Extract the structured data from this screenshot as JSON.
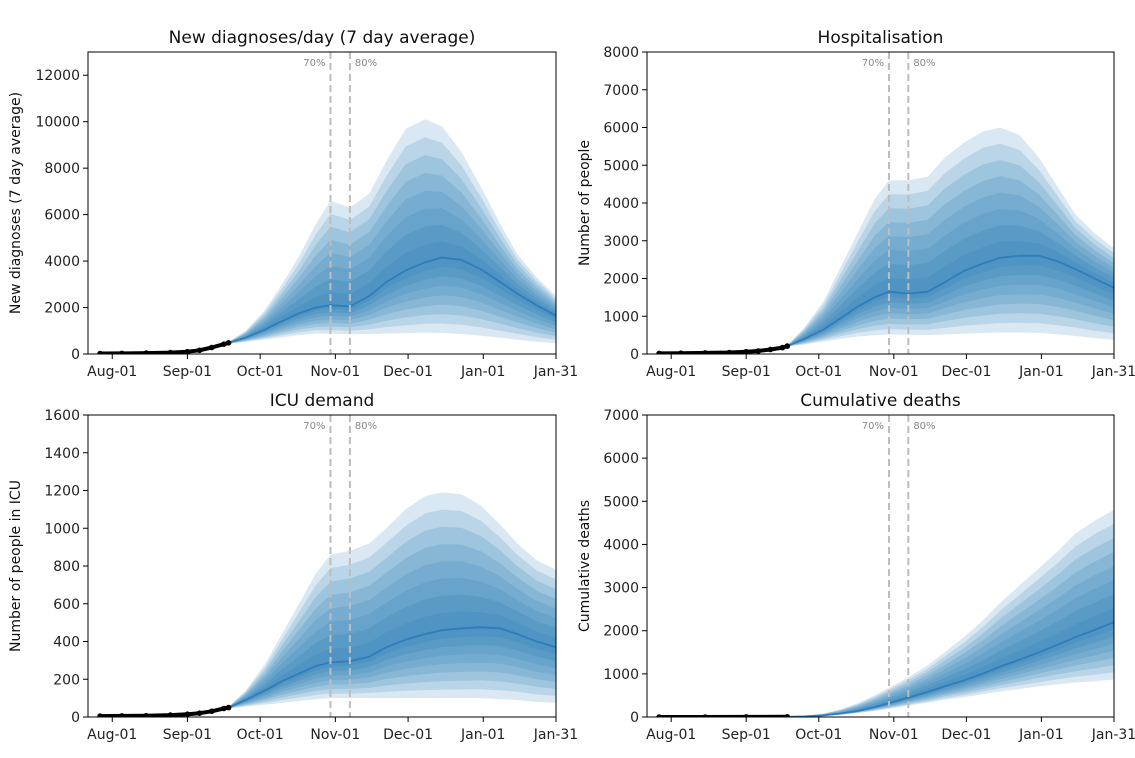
{
  "figure": {
    "colors": {
      "band": "#1f77b4",
      "median": "#2f7dbd",
      "observed": "#000000",
      "vline": "#bdbdbd",
      "axis": "#000000"
    }
  },
  "chart_data": [
    {
      "type": "area",
      "title": "New diagnoses/day (7 day average)",
      "xlabel": "",
      "ylabel": "New diagnoses (7 day average)",
      "x_ticks": [
        "Aug-01",
        "Sep-01",
        "Oct-01",
        "Nov-01",
        "Dec-01",
        "Jan-01",
        "Jan-31"
      ],
      "ylim": [
        0,
        13000
      ],
      "y_ticks": [
        0,
        2000,
        4000,
        6000,
        8000,
        10000,
        12000
      ],
      "vlines": [
        {
          "date": "2020-10-30",
          "label": "70%"
        },
        {
          "date": "2020-11-07",
          "label": "80%"
        }
      ],
      "observed": {
        "x": [
          "2020-07-27",
          "2020-08-05",
          "2020-08-15",
          "2020-08-25",
          "2020-09-01",
          "2020-09-06",
          "2020-09-11",
          "2020-09-16",
          "2020-09-18"
        ],
        "y": [
          20,
          25,
          40,
          60,
          100,
          160,
          280,
          420,
          480
        ]
      },
      "forecast": {
        "x": [
          "2020-09-18",
          "2020-09-25",
          "2020-10-03",
          "2020-10-10",
          "2020-10-17",
          "2020-10-24",
          "2020-10-30",
          "2020-11-07",
          "2020-11-15",
          "2020-11-22",
          "2020-11-30",
          "2020-12-08",
          "2020-12-15",
          "2020-12-23",
          "2020-12-31",
          "2021-01-08",
          "2021-01-15",
          "2021-01-23",
          "2021-01-31"
        ],
        "median": [
          480,
          700,
          1050,
          1420,
          1750,
          2000,
          2100,
          2050,
          2500,
          3100,
          3600,
          3950,
          4150,
          4050,
          3650,
          3100,
          2600,
          2100,
          1650
        ],
        "upper": [
          520,
          1000,
          1900,
          3000,
          4200,
          5600,
          6600,
          6300,
          6900,
          8300,
          9700,
          10100,
          9800,
          8700,
          7200,
          5600,
          4300,
          3300,
          2500
        ],
        "lower": [
          440,
          520,
          620,
          720,
          820,
          880,
          880,
          850,
          860,
          880,
          900,
          920,
          910,
          860,
          790,
          700,
          620,
          530,
          470
        ]
      }
    },
    {
      "type": "area",
      "title": "Hospitalisation",
      "xlabel": "",
      "ylabel": "Number of people",
      "x_ticks": [
        "Aug-01",
        "Sep-01",
        "Oct-01",
        "Nov-01",
        "Dec-01",
        "Jan-01",
        "Jan-31"
      ],
      "ylim": [
        0,
        8000
      ],
      "y_ticks": [
        0,
        1000,
        2000,
        3000,
        4000,
        5000,
        6000,
        7000,
        8000
      ],
      "vlines": [
        {
          "date": "2020-10-30",
          "label": "70%"
        },
        {
          "date": "2020-11-07",
          "label": "80%"
        }
      ],
      "observed": {
        "x": [
          "2020-07-27",
          "2020-08-05",
          "2020-08-15",
          "2020-08-25",
          "2020-09-01",
          "2020-09-06",
          "2020-09-11",
          "2020-09-16",
          "2020-09-18"
        ],
        "y": [
          15,
          20,
          30,
          40,
          60,
          80,
          120,
          170,
          210
        ]
      },
      "forecast": {
        "x": [
          "2020-09-18",
          "2020-09-25",
          "2020-10-03",
          "2020-10-10",
          "2020-10-17",
          "2020-10-24",
          "2020-10-30",
          "2020-11-07",
          "2020-11-15",
          "2020-11-22",
          "2020-11-30",
          "2020-12-08",
          "2020-12-15",
          "2020-12-23",
          "2020-12-31",
          "2021-01-08",
          "2021-01-15",
          "2021-01-23",
          "2021-01-31"
        ],
        "median": [
          210,
          400,
          650,
          950,
          1250,
          1500,
          1650,
          1600,
          1650,
          1900,
          2200,
          2400,
          2550,
          2600,
          2600,
          2450,
          2250,
          2000,
          1750
        ],
        "upper": [
          230,
          700,
          1400,
          2300,
          3200,
          4100,
          4600,
          4600,
          4700,
          5200,
          5600,
          5900,
          6000,
          5800,
          5200,
          4400,
          3700,
          3200,
          2800
        ],
        "lower": [
          200,
          250,
          330,
          400,
          460,
          500,
          520,
          510,
          500,
          520,
          540,
          560,
          570,
          570,
          560,
          520,
          480,
          420,
          380
        ]
      }
    },
    {
      "type": "area",
      "title": "ICU demand",
      "xlabel": "",
      "ylabel": "Number of people in ICU",
      "x_ticks": [
        "Aug-01",
        "Sep-01",
        "Oct-01",
        "Nov-01",
        "Dec-01",
        "Jan-01",
        "Jan-31"
      ],
      "ylim": [
        0,
        1600
      ],
      "y_ticks": [
        0,
        200,
        400,
        600,
        800,
        1000,
        1200,
        1400,
        1600
      ],
      "vlines": [
        {
          "date": "2020-10-30",
          "label": "70%"
        },
        {
          "date": "2020-11-07",
          "label": "80%"
        }
      ],
      "observed": {
        "x": [
          "2020-07-27",
          "2020-08-05",
          "2020-08-15",
          "2020-08-25",
          "2020-09-01",
          "2020-09-06",
          "2020-09-11",
          "2020-09-16",
          "2020-09-18"
        ],
        "y": [
          5,
          6,
          7,
          10,
          15,
          20,
          30,
          45,
          50
        ]
      },
      "forecast": {
        "x": [
          "2020-09-18",
          "2020-09-25",
          "2020-10-03",
          "2020-10-10",
          "2020-10-17",
          "2020-10-24",
          "2020-10-30",
          "2020-11-07",
          "2020-11-15",
          "2020-11-22",
          "2020-11-30",
          "2020-12-08",
          "2020-12-15",
          "2020-12-23",
          "2020-12-31",
          "2021-01-08",
          "2021-01-15",
          "2021-01-23",
          "2021-01-31"
        ],
        "median": [
          50,
          90,
          140,
          190,
          230,
          270,
          290,
          295,
          320,
          370,
          410,
          440,
          460,
          470,
          475,
          470,
          440,
          400,
          370
        ],
        "upper": [
          55,
          140,
          280,
          440,
          600,
          760,
          860,
          880,
          920,
          1000,
          1100,
          1170,
          1190,
          1180,
          1120,
          1020,
          920,
          830,
          780
        ],
        "lower": [
          45,
          55,
          65,
          75,
          85,
          95,
          100,
          100,
          100,
          100,
          100,
          100,
          100,
          100,
          100,
          95,
          90,
          80,
          75
        ]
      }
    },
    {
      "type": "area",
      "title": "Cumulative deaths",
      "xlabel": "",
      "ylabel": "Cumulative deaths",
      "x_ticks": [
        "Aug-01",
        "Sep-01",
        "Oct-01",
        "Nov-01",
        "Dec-01",
        "Jan-01",
        "Jan-31"
      ],
      "ylim": [
        0,
        7000
      ],
      "y_ticks": [
        0,
        1000,
        2000,
        3000,
        4000,
        5000,
        6000,
        7000
      ],
      "vlines": [
        {
          "date": "2020-10-30",
          "label": "70%"
        },
        {
          "date": "2020-11-07",
          "label": "80%"
        }
      ],
      "observed": {
        "x": [
          "2020-07-27",
          "2020-08-15",
          "2020-09-01",
          "2020-09-18"
        ],
        "y": [
          0,
          0,
          2,
          5
        ]
      },
      "forecast": {
        "x": [
          "2020-09-18",
          "2020-09-25",
          "2020-10-03",
          "2020-10-10",
          "2020-10-17",
          "2020-10-24",
          "2020-10-30",
          "2020-11-07",
          "2020-11-15",
          "2020-11-22",
          "2020-11-30",
          "2020-12-08",
          "2020-12-15",
          "2020-12-23",
          "2020-12-31",
          "2021-01-08",
          "2021-01-15",
          "2021-01-23",
          "2021-01-31"
        ],
        "median": [
          5,
          15,
          40,
          80,
          140,
          230,
          320,
          450,
          580,
          710,
          850,
          1010,
          1170,
          1330,
          1500,
          1680,
          1850,
          2020,
          2200
        ],
        "upper": [
          6,
          25,
          80,
          180,
          320,
          500,
          680,
          920,
          1200,
          1500,
          1850,
          2250,
          2650,
          3050,
          3450,
          3850,
          4250,
          4550,
          4800
        ],
        "lower": [
          4,
          10,
          25,
          50,
          90,
          140,
          190,
          260,
          330,
          400,
          460,
          530,
          590,
          650,
          710,
          760,
          800,
          830,
          870
        ]
      }
    }
  ]
}
